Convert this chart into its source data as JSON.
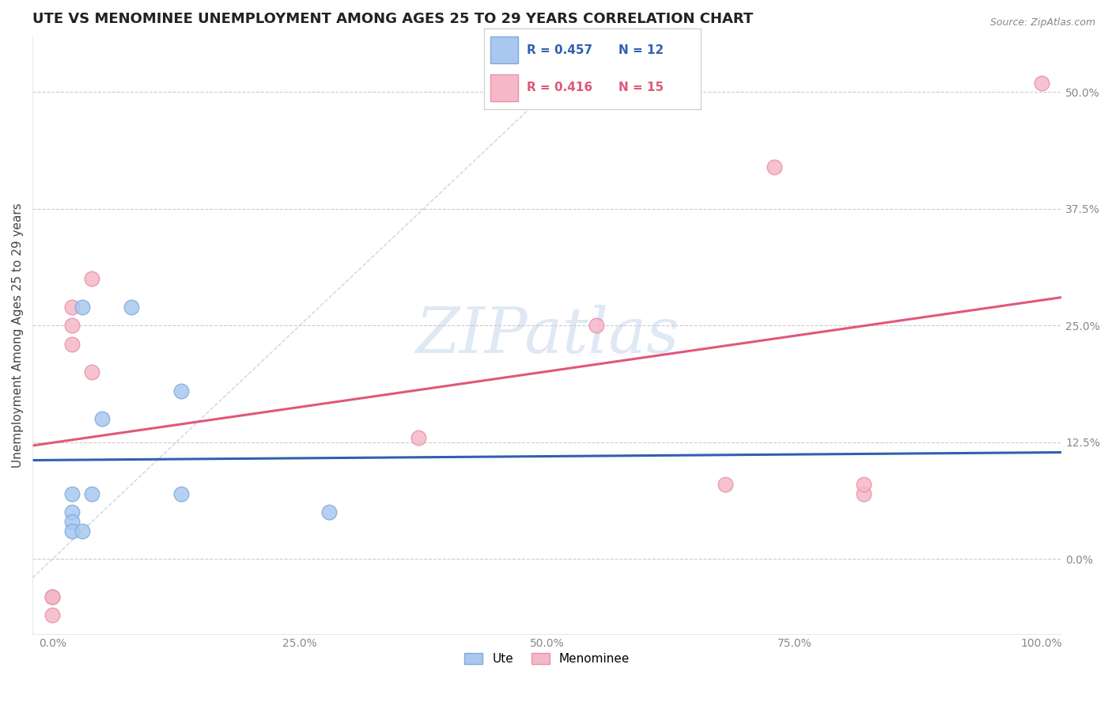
{
  "title": "UTE VS MENOMINEE UNEMPLOYMENT AMONG AGES 25 TO 29 YEARS CORRELATION CHART",
  "source": "Source: ZipAtlas.com",
  "ylabel": "Unemployment Among Ages 25 to 29 years",
  "xlabel": "",
  "xlim": [
    -0.02,
    1.02
  ],
  "ylim": [
    -0.08,
    0.56
  ],
  "xticks": [
    0.0,
    0.25,
    0.5,
    0.75,
    1.0
  ],
  "xtick_labels": [
    "0.0%",
    "25.0%",
    "50.0%",
    "75.0%",
    "100.0%"
  ],
  "yticks": [
    0.0,
    0.125,
    0.25,
    0.375,
    0.5
  ],
  "ytick_labels": [
    "0.0%",
    "12.5%",
    "25.0%",
    "37.5%",
    "50.0%"
  ],
  "ute_color": "#a8c8f0",
  "menominee_color": "#f5b8c8",
  "ute_edge_color": "#7facd8",
  "menominee_edge_color": "#e890a8",
  "ute_R": 0.457,
  "ute_N": 12,
  "menominee_R": 0.416,
  "menominee_N": 15,
  "ute_line_color": "#3060b0",
  "menominee_line_color": "#e05878",
  "refline_color": "#b8cce0",
  "watermark": "ZIPatlas",
  "ute_x": [
    0.02,
    0.02,
    0.02,
    0.02,
    0.03,
    0.03,
    0.04,
    0.05,
    0.08,
    0.13,
    0.13,
    0.28
  ],
  "ute_y": [
    0.07,
    0.05,
    0.04,
    0.03,
    0.27,
    0.03,
    0.07,
    0.15,
    0.27,
    0.18,
    0.07,
    0.05
  ],
  "menominee_x": [
    0.0,
    0.0,
    0.0,
    0.02,
    0.02,
    0.02,
    0.04,
    0.04,
    0.37,
    0.55,
    0.68,
    0.73,
    0.82,
    0.82,
    1.0
  ],
  "menominee_y": [
    -0.04,
    -0.04,
    -0.06,
    0.27,
    0.25,
    0.23,
    0.3,
    0.2,
    0.13,
    0.25,
    0.08,
    0.42,
    0.07,
    0.08,
    0.51
  ],
  "background_color": "#ffffff",
  "grid_color": "#cccccc",
  "title_color": "#222222",
  "title_fontsize": 13,
  "axis_label_color": "#444444",
  "tick_color": "#888888",
  "legend_ute_R_color": "#3060b0",
  "legend_men_R_color": "#e05878",
  "legend_fontsize": 11,
  "marker_size": 180
}
